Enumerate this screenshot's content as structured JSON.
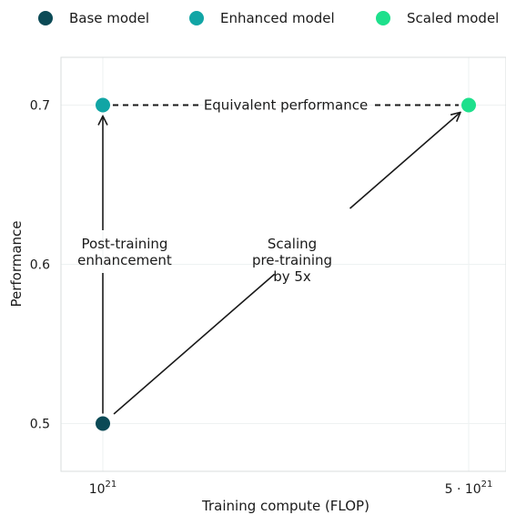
{
  "chart_data": {
    "type": "scatter",
    "xlabel": "Training compute (FLOP)",
    "ylabel": "Performance",
    "ylim": [
      0.47,
      0.73
    ],
    "x_scale": "log",
    "yticks": [
      {
        "value": 0.5,
        "label": "0.5"
      },
      {
        "value": 0.6,
        "label": "0.6"
      },
      {
        "value": 0.7,
        "label": "0.7"
      }
    ],
    "xticks": [
      {
        "value": 1e+21,
        "base": "10",
        "exp": "21"
      },
      {
        "value": 5e+21,
        "base": "5 · 10",
        "exp": "21"
      }
    ],
    "series": [
      {
        "name": "Base model",
        "color": "#0b4a56",
        "points": [
          {
            "x": 1e+21,
            "y": 0.5
          }
        ]
      },
      {
        "name": "Enhanced model",
        "color": "#11a5a5",
        "points": [
          {
            "x": 1e+21,
            "y": 0.7
          }
        ]
      },
      {
        "name": "Scaled model",
        "color": "#1ee08c",
        "points": [
          {
            "x": 5e+21,
            "y": 0.7
          }
        ]
      }
    ],
    "grid": true,
    "legend_position": "top",
    "annotations": {
      "equivalent": "Equivalent performance",
      "post_training": [
        "Post-training",
        "enhancement"
      ],
      "scaling": [
        "Scaling",
        "pre-training",
        "by 5x"
      ]
    }
  }
}
